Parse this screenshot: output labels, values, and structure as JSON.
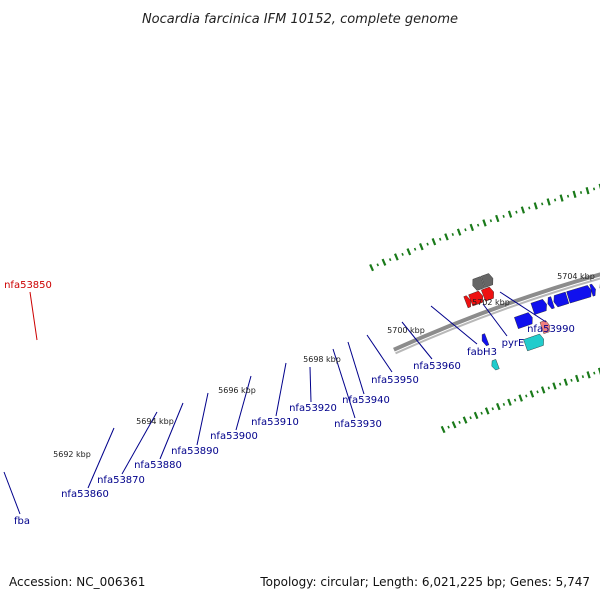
{
  "title": "Nocardia farcinica IFM 10152, complete genome",
  "footer": {
    "accession": "Accession: NC_006361",
    "summary": "Topology: circular; Length: 6,021,225 bp; Genes: 5,747"
  },
  "colors": {
    "gene_blue": "#1111ee",
    "gene_red": "#ee1111",
    "gene_gray": "#666666",
    "gene_cyan": "#22cccc",
    "gene_pink": "#f08080",
    "gene_lightblue": "#11aaee",
    "gene_lightgray": "#bbbbbb",
    "gene_purple": "#7766cc",
    "tick_green": "#1a7a1a",
    "label_blue": "#00008b",
    "label_red": "#cc0000"
  },
  "kbp_labels": [
    "5692 kbp",
    "5694 kbp",
    "5696 kbp",
    "5698 kbp",
    "5700 kbp",
    "5702 kbp",
    "5704 kbp"
  ],
  "gene_labels": [
    {
      "text": "nfa53850",
      "color": "red"
    },
    {
      "text": "nfa53860",
      "color": "blue"
    },
    {
      "text": "nfa53870",
      "color": "blue"
    },
    {
      "text": "nfa53880",
      "color": "blue"
    },
    {
      "text": "nfa53890",
      "color": "blue"
    },
    {
      "text": "nfa53900",
      "color": "blue"
    },
    {
      "text": "nfa53910",
      "color": "blue"
    },
    {
      "text": "nfa53920",
      "color": "blue"
    },
    {
      "text": "nfa53930",
      "color": "blue"
    },
    {
      "text": "nfa53940",
      "color": "blue"
    },
    {
      "text": "nfa53950",
      "color": "blue"
    },
    {
      "text": "nfa53960",
      "color": "blue"
    },
    {
      "text": "fabH3",
      "color": "blue"
    },
    {
      "text": "pyrE",
      "color": "blue"
    },
    {
      "text": "nfa53990",
      "color": "blue"
    },
    {
      "text": "fba",
      "color": "blue"
    }
  ]
}
